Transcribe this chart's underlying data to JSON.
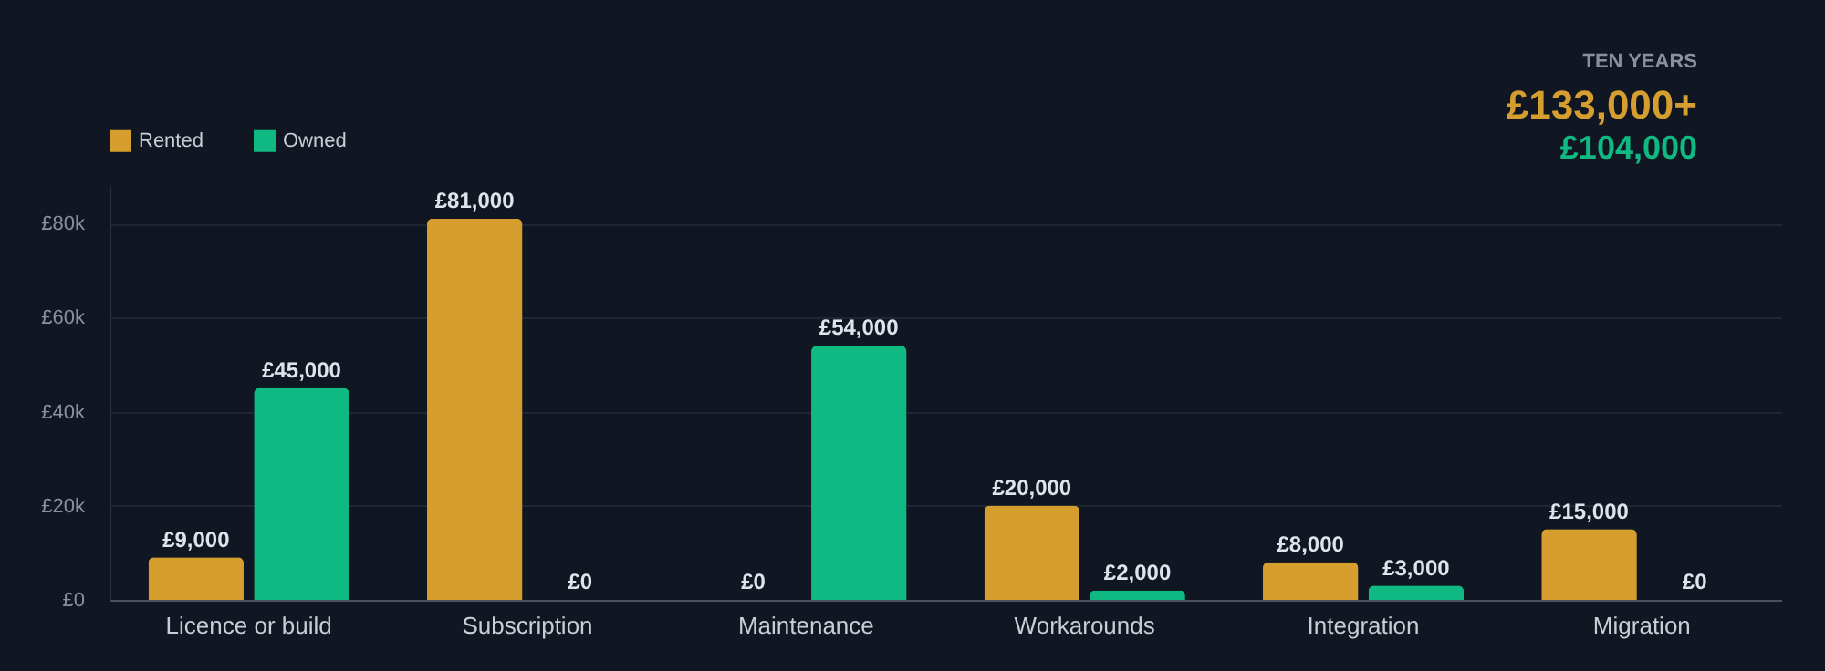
{
  "chart_data": {
    "type": "bar",
    "categories": [
      "Licence or build",
      "Subscription",
      "Maintenance",
      "Workarounds",
      "Integration",
      "Migration"
    ],
    "series": [
      {
        "name": "Rented",
        "color": "#d69e2e",
        "values": [
          9000,
          81000,
          0,
          20000,
          8000,
          15000
        ],
        "value_labels": [
          "£9,000",
          "£81,000",
          "£0",
          "£20,000",
          "£8,000",
          "£15,000"
        ]
      },
      {
        "name": "Owned",
        "color": "#10b981",
        "values": [
          45000,
          0,
          54000,
          2000,
          3000,
          0
        ],
        "value_labels": [
          "£45,000",
          "£0",
          "£54,000",
          "£2,000",
          "£3,000",
          "£0"
        ]
      }
    ],
    "ylim": [
      0,
      88000
    ],
    "yticks": [
      {
        "value": 0,
        "label": "£0"
      },
      {
        "value": 20000,
        "label": "£20k"
      },
      {
        "value": 40000,
        "label": "£40k"
      },
      {
        "value": 60000,
        "label": "£60k"
      },
      {
        "value": 80000,
        "label": "£80k"
      }
    ],
    "grid": "y",
    "legend": "top left",
    "annotations": [
      "TEN YEARS",
      "£133,000+",
      "£104,000"
    ]
  }
}
